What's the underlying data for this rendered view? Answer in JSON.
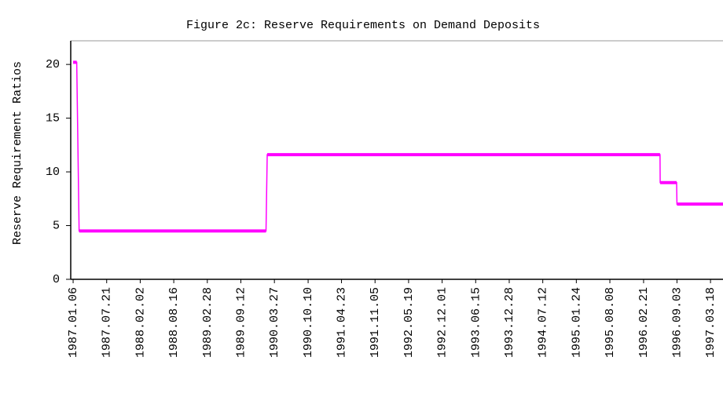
{
  "chart_data": {
    "type": "line",
    "title": "Figure 2c: Reserve Requirements on Demand Deposits",
    "y_label": "Reserve Requirement Ratios",
    "x": [
      "1987.01.06",
      "1987.01.27",
      "1987.02.10",
      "1990.02.06",
      "1990.02.13",
      "1996.05.27",
      "1996.05.28",
      "1996.09.01",
      "1996.09.03",
      "1997.05.30"
    ],
    "series": [
      {
        "name": "Reserve Requirement Ratio",
        "color": "#ff00ff",
        "values": [
          20.2,
          20.2,
          4.5,
          4.5,
          11.6,
          11.6,
          9,
          9,
          7,
          7
        ]
      }
    ],
    "xlim": [
      "1986.12.23",
      "1997.05.30"
    ],
    "xticks": [
      "1987.01.06",
      "1987.07.21",
      "1988.02.02",
      "1988.08.16",
      "1989.02.28",
      "1989.09.12",
      "1990.03.27",
      "1990.10.10",
      "1991.04.23",
      "1991.11.05",
      "1992.05.19",
      "1992.12.01",
      "1993.06.15",
      "1993.12.28",
      "1994.07.12",
      "1995.01.24",
      "1995.08.08",
      "1996.02.21",
      "1996.09.03",
      "1997.03.18"
    ],
    "ylim": [
      0,
      22.2
    ],
    "yticks": [
      0,
      5,
      10,
      15,
      20
    ],
    "grid": false
  }
}
